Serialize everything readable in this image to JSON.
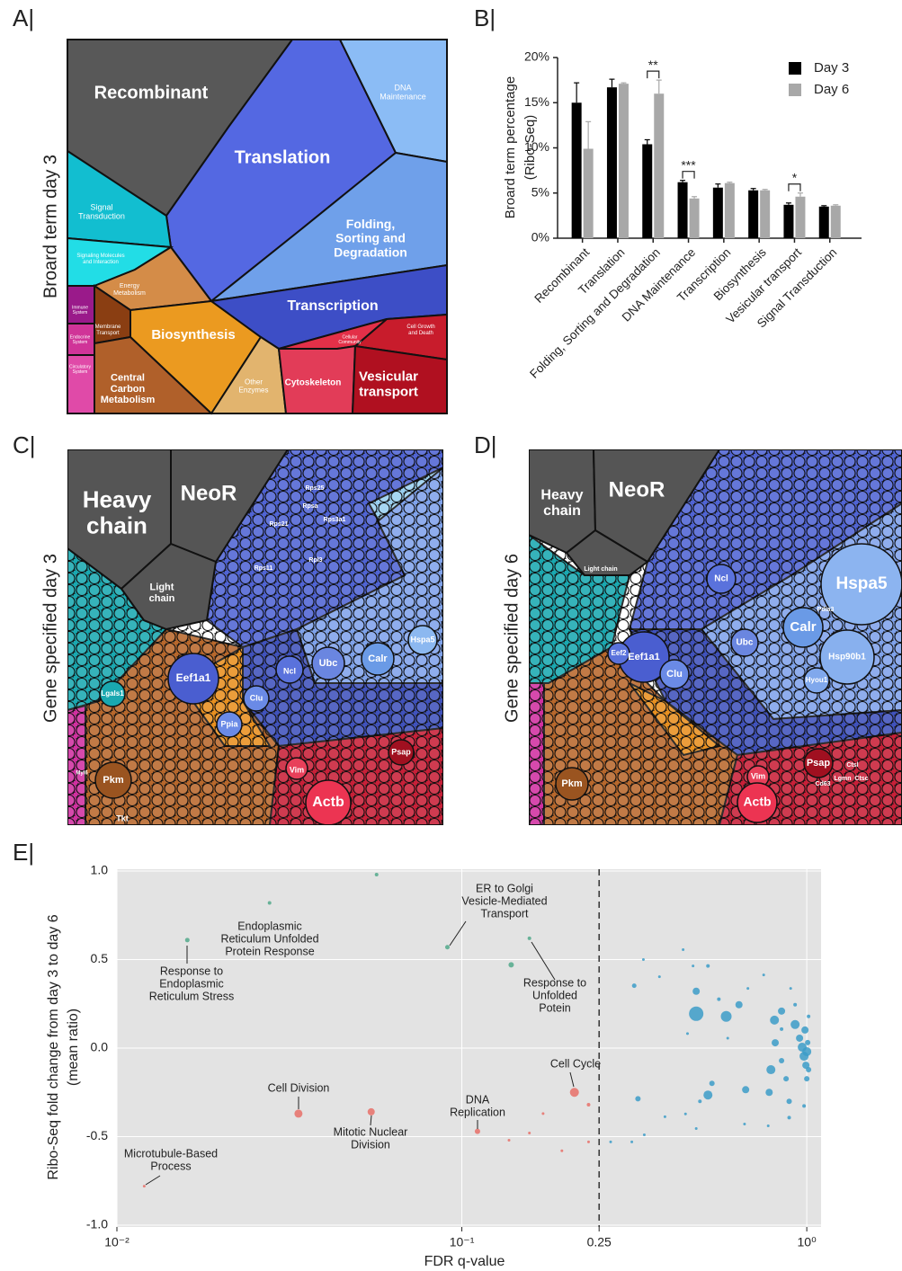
{
  "panel_a": {
    "letter": "A|",
    "ylabel": "Broard term day 3",
    "regions": [
      {
        "label": [
          "Recombinant"
        ],
        "color": "#585858"
      },
      {
        "label": [
          "Translation"
        ],
        "color": "#5468e2"
      },
      {
        "label": [
          "DNA",
          "Maintenance"
        ],
        "color": "#8bbcf5"
      },
      {
        "label": [
          "Signal",
          "Transduction"
        ],
        "color": "#12bed0"
      },
      {
        "label": [
          "Signaling Molecules",
          "and Interaction"
        ],
        "color": "#22dde6"
      },
      {
        "label": [
          "Folding,",
          "Sorting and",
          "Degradation"
        ],
        "color": "#6fa0ea"
      },
      {
        "label": [
          "Energy",
          "Metabolism"
        ],
        "color": "#d48c48"
      },
      {
        "label": [
          "Immune",
          "System"
        ],
        "color": "#9a1a8a"
      },
      {
        "label": [
          "Membrane",
          "Transport"
        ],
        "color": "#8a3e12"
      },
      {
        "label": [
          "Biosynthesis"
        ],
        "color": "#eb9a20"
      },
      {
        "label": [
          "Transcription"
        ],
        "color": "#3d4ec6"
      },
      {
        "label": [
          "Cell Growth",
          "and Death"
        ],
        "color": "#c81c2c"
      },
      {
        "label": [
          "Cellular",
          "Community"
        ],
        "color": "#e33048"
      },
      {
        "label": [
          "Endocrine",
          "System"
        ],
        "color": "#d03498"
      },
      {
        "label": [
          "Circulatory",
          "System"
        ],
        "color": "#e04aa8"
      },
      {
        "label": [
          "Central",
          "Carbon",
          "Metabolism"
        ],
        "color": "#b0602a"
      },
      {
        "label": [
          "Other",
          "Enzymes"
        ],
        "color": "#e2b46e"
      },
      {
        "label": [
          "Cytoskeleton"
        ],
        "color": "#e23c58"
      },
      {
        "label": [
          "Vesicular",
          "transport"
        ],
        "color": "#b01020"
      }
    ]
  },
  "panel_c": {
    "letter": "C|",
    "ylabel": "Gene specified day 3",
    "labels": [
      [
        "Heavy",
        "chain"
      ],
      [
        "NeoR"
      ],
      [
        "Light",
        "chain"
      ],
      [
        "Eef1a1"
      ],
      [
        "Ubc"
      ],
      [
        "Calr"
      ],
      [
        "Hspa5"
      ],
      [
        "Ncl"
      ],
      [
        "Clu"
      ],
      [
        "Ppia"
      ],
      [
        "Rps25"
      ],
      [
        "Rpsa"
      ],
      [
        "Rps3a1"
      ],
      [
        "Rps21"
      ],
      [
        "Rpl3"
      ],
      [
        "Rps11"
      ],
      [
        "Lgals1"
      ],
      [
        "Pkm"
      ],
      [
        "Tkt"
      ],
      [
        "Vim"
      ],
      [
        "Actb"
      ],
      [
        "Psap"
      ],
      [
        "Myl6"
      ]
    ]
  },
  "panel_d": {
    "letter": "D|",
    "ylabel": "Gene specified day 6",
    "labels": [
      [
        "Heavy",
        "chain"
      ],
      [
        "NeoR"
      ],
      [
        "Light chain"
      ],
      [
        "Hspa5"
      ],
      [
        "Calr"
      ],
      [
        "Hsp90b1"
      ],
      [
        "Hyou1"
      ],
      [
        "Pdia3"
      ],
      [
        "Eef1a1"
      ],
      [
        "Eef2"
      ],
      [
        "Ncl"
      ],
      [
        "Clu"
      ],
      [
        "Ubc"
      ],
      [
        "Pkm"
      ],
      [
        "Vim"
      ],
      [
        "Actb"
      ],
      [
        "Psap"
      ],
      [
        "Ctsl"
      ],
      [
        "Cd63"
      ],
      [
        "Lgmn"
      ],
      [
        "Ctsc"
      ]
    ]
  },
  "chart_data": [
    {
      "type": "bar",
      "panel": "B|",
      "ylabel": [
        "Broard term percentage",
        "(Ribo-Seq)"
      ],
      "categories": [
        "Recombinant",
        "Translation",
        "Folding, Sorting and Degradation",
        "DNA Maintenance",
        "Transcription",
        "Biosynthesis",
        "Vesicular transport",
        "Signal Transduction"
      ],
      "series": [
        {
          "name": "Day 3",
          "color": "#000000",
          "values": [
            15.0,
            16.7,
            10.4,
            6.2,
            5.6,
            5.3,
            3.7,
            3.5
          ],
          "errors": [
            2.2,
            0.9,
            0.5,
            0.2,
            0.4,
            0.2,
            0.2,
            0.1
          ]
        },
        {
          "name": "Day 6",
          "color": "#a8a8a8",
          "values": [
            9.9,
            17.1,
            16.0,
            4.4,
            6.1,
            5.3,
            4.6,
            3.6
          ],
          "errors": [
            3.0,
            0.1,
            1.5,
            0.2,
            0.1,
            0.1,
            0.4,
            0.1
          ]
        }
      ],
      "ylim": [
        0,
        20
      ],
      "yticks": [
        {
          "value": 0,
          "label": "0%"
        },
        {
          "value": 5,
          "label": "5%"
        },
        {
          "value": 10,
          "label": "10%"
        },
        {
          "value": 15,
          "label": "15%"
        },
        {
          "value": 20,
          "label": "20%"
        }
      ],
      "significance": [
        {
          "category": "Folding, Sorting and Degradation",
          "label": "**"
        },
        {
          "category": "DNA Maintenance",
          "label": "***"
        },
        {
          "category": "Vesicular transport",
          "label": "*"
        }
      ],
      "legend": "upper right"
    },
    {
      "type": "scatter",
      "panel": "E|",
      "xlabel": "FDR q-value",
      "ylabel": [
        "Ribo-Seq fold change from day 3 to day 6",
        "(mean ratio)"
      ],
      "xscale": "log",
      "xlim": [
        0.01,
        1.1
      ],
      "ylim": [
        -1,
        1
      ],
      "xticks": [
        {
          "value": 0.01,
          "label": "10⁻²"
        },
        {
          "value": 0.1,
          "label": "10⁻¹"
        },
        0.25,
        {
          "value": 1,
          "label": "10⁰"
        }
      ],
      "yticks": [
        {
          "value": -1,
          "label": "-1.0"
        },
        {
          "value": -0.5,
          "label": "-0.5"
        },
        {
          "value": 0,
          "label": "0.0"
        },
        {
          "value": 0.5,
          "label": "0.5"
        },
        {
          "value": 1,
          "label": "1.0"
        }
      ],
      "grid": true,
      "threshold": 0.25,
      "series": [
        {
          "color": "#52a98b",
          "x": [
            0.016,
            0.0277,
            0.0566,
            0.0908,
            0.139,
            0.157
          ],
          "y": [
            0.61,
            0.82,
            0.98,
            0.57,
            0.47,
            0.62
          ],
          "size": [
            2.5,
            2,
            2,
            2.5,
            3,
            2
          ]
        },
        {
          "color": "#e87068",
          "x": [
            0.012,
            0.0336,
            0.0546,
            0.111,
            0.137,
            0.157,
            0.172,
            0.195,
            0.212,
            0.233,
            0.233
          ],
          "y": [
            -0.78,
            -0.37,
            -0.36,
            -0.47,
            -0.52,
            -0.48,
            -0.37,
            -0.58,
            -0.25,
            -0.32,
            -0.53
          ],
          "size": [
            1.5,
            4.5,
            4,
            3,
            1.5,
            1.5,
            1.5,
            1.5,
            5,
            2,
            1.5
          ]
        },
        {
          "color": "#3c9cc8",
          "x": [
            0.316,
            0.336,
            0.374,
            0.438,
            0.478,
            0.478,
            0.517,
            0.584,
            0.556,
            0.636,
            0.675,
            0.806,
            0.81,
            0.845,
            0.898,
            0.925,
            0.953,
            0.97,
            0.982,
            0.988,
            0.994,
            1.0,
            1.006,
            1.012,
            1.0,
            1.012,
            0.925,
            0.871,
            0.787,
            0.778,
            0.845,
            0.889,
            0.665,
            0.531,
            0.517,
            0.49,
            0.324,
            0.388,
            0.445,
            0.338,
            0.311,
            0.27,
            0.478,
            0.66,
            0.773,
            0.889,
            0.982,
            0.75,
            0.468,
            0.59,
            0.845,
            0.451
          ],
          "y": [
            0.352,
            0.5,
            0.403,
            0.556,
            0.321,
            0.194,
            0.464,
            0.179,
            0.276,
            0.245,
            0.337,
            0.158,
            0.03,
            0.209,
            0.337,
            0.133,
            0.056,
            0.005,
            -0.046,
            0.102,
            -0.097,
            -0.02,
            0.031,
            -0.122,
            -0.173,
            0.179,
            0.245,
            -0.173,
            -0.122,
            -0.25,
            -0.071,
            -0.301,
            -0.235,
            -0.199,
            -0.265,
            -0.301,
            -0.286,
            -0.388,
            -0.372,
            -0.49,
            -0.53,
            -0.53,
            -0.454,
            -0.429,
            -0.439,
            -0.393,
            -0.327,
            0.413,
            0.464,
            0.056,
            0.107,
            0.082
          ],
          "size": [
            2.5,
            1.5,
            1.5,
            1.5,
            4,
            8,
            2,
            6,
            2,
            4,
            1.5,
            5,
            4,
            4,
            1.5,
            5,
            4,
            5,
            5,
            4,
            4,
            5,
            3,
            3,
            3,
            2,
            2,
            3,
            5,
            4,
            3,
            3,
            4,
            3,
            5,
            2,
            3,
            1.5,
            1.5,
            1.5,
            1.5,
            1.5,
            1.5,
            1.5,
            1.5,
            2,
            2,
            1.5,
            1.5,
            1.5,
            2,
            1.5
          ]
        }
      ],
      "annotations": [
        {
          "lines": [
            "Response to",
            "Endoplasmic",
            "Reticulum Stress"
          ]
        },
        {
          "lines": [
            "Endoplasmic",
            "Reticulum Unfolded",
            "Protein Response"
          ]
        },
        {
          "lines": [
            "ER to Golgi",
            "Vesicle-Mediated",
            "Transport"
          ]
        },
        {
          "lines": [
            "Response to",
            "Unfolded",
            "Potein"
          ]
        },
        {
          "lines": [
            "Cell Cycle"
          ]
        },
        {
          "lines": [
            "Cell Division"
          ]
        },
        {
          "lines": [
            "Mitotic Nuclear",
            "Division"
          ]
        },
        {
          "lines": [
            "DNA",
            "Replication"
          ]
        },
        {
          "lines": [
            "Microtubule-Based",
            "Process"
          ]
        }
      ]
    }
  ]
}
